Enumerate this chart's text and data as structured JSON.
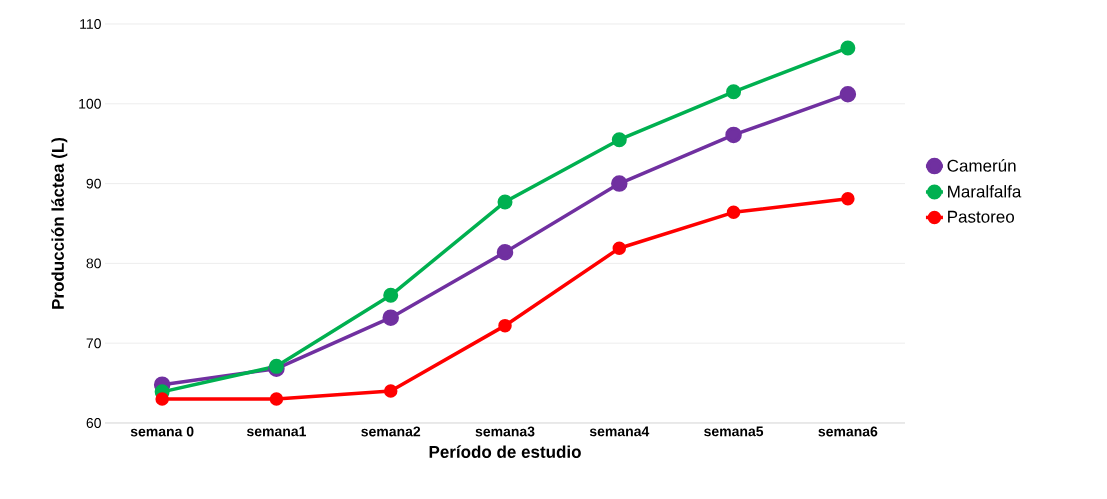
{
  "chart_data": {
    "type": "line",
    "xlabel": "Período de estudio",
    "ylabel": "Producción láctea (L)",
    "categories": [
      "semana 0",
      "semana1",
      "semana2",
      "semana3",
      "semana4",
      "semana5",
      "semana6"
    ],
    "series": [
      {
        "name": "Camerún",
        "color": "#7030a0",
        "values": [
          64.8,
          66.8,
          73.2,
          81.4,
          90.0,
          96.1,
          101.2
        ]
      },
      {
        "name": "Maralfalfa",
        "color": "#00b050",
        "values": [
          63.9,
          67.1,
          76.0,
          87.7,
          95.5,
          101.5,
          107.0
        ]
      },
      {
        "name": "Pastoreo",
        "color": "#ff0000",
        "values": [
          63.0,
          63.0,
          64.0,
          72.2,
          81.9,
          86.4,
          88.1
        ]
      }
    ],
    "ylim": [
      60,
      110
    ],
    "yticks": [
      60,
      70,
      80,
      90,
      100,
      110
    ],
    "grid": "y",
    "legend": "right",
    "marker": "circle"
  }
}
